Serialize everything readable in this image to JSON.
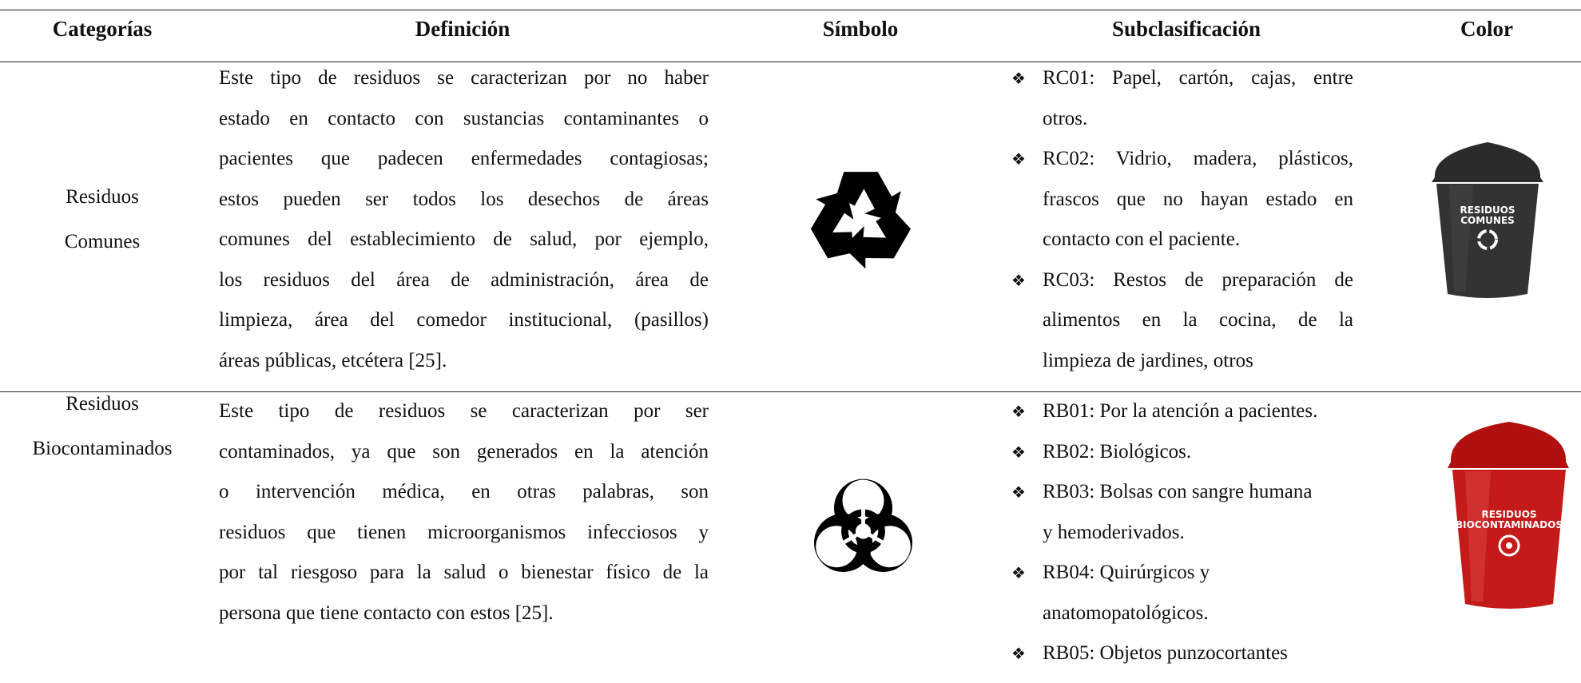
{
  "table": {
    "headers": [
      "Categorías",
      "Definición",
      "Símbolo",
      "Subclasificación",
      "Color"
    ],
    "rows": [
      {
        "category": [
          "Residuos",
          "Comunes"
        ],
        "definition": [
          "Este tipo de residuos se caracterizan por no haber",
          "estado en contacto con sustancias contaminantes o",
          "pacientes que padecen enfermedades contagiosas;",
          "estos pueden ser todos los desechos de áreas",
          "comunes del establecimiento de salud, por ejemplo,",
          "los residuos del área de administración, área de",
          "limpieza, área del comedor institucional, (pasillos)",
          "áreas públicas, etcétera [25]."
        ],
        "subclassification": [
          [
            "RC01: Papel, cartón, cajas, entre",
            "otros."
          ],
          [
            "RC02: Vidrio, madera, plásticos,",
            "frascos que no hayan estado en",
            "contacto con el paciente."
          ],
          [
            "RC03: Restos de preparación de",
            "alimentos en la cocina, de la",
            "limpieza de jardines, otros"
          ]
        ],
        "bin_label": [
          "RESIDUOS",
          "COMUNES"
        ]
      },
      {
        "category": [
          "Residuos",
          "Biocontaminados"
        ],
        "definition": [
          "Este tipo de residuos se caracterizan por ser",
          "contaminados, ya que son generados en la atención",
          "o intervención médica, en otras palabras, son",
          "residuos que tienen microorganismos infecciosos y",
          "por tal riesgoso para la salud o bienestar físico de la",
          "persona que tiene contacto con estos [25]."
        ],
        "subclassification": [
          [
            "RB01: Por la atención a pacientes."
          ],
          [
            "RB02: Biológicos."
          ],
          [
            "RB03: Bolsas con sangre humana",
            "y hemoderivados."
          ],
          [
            "RB04: Quirúrgicos y",
            "anatomopatológicos."
          ],
          [
            "RB05: Objetos punzocortantes"
          ]
        ],
        "bin_label": [
          "RESIDUOS",
          "BIOCONTAMINADOS"
        ]
      }
    ]
  }
}
